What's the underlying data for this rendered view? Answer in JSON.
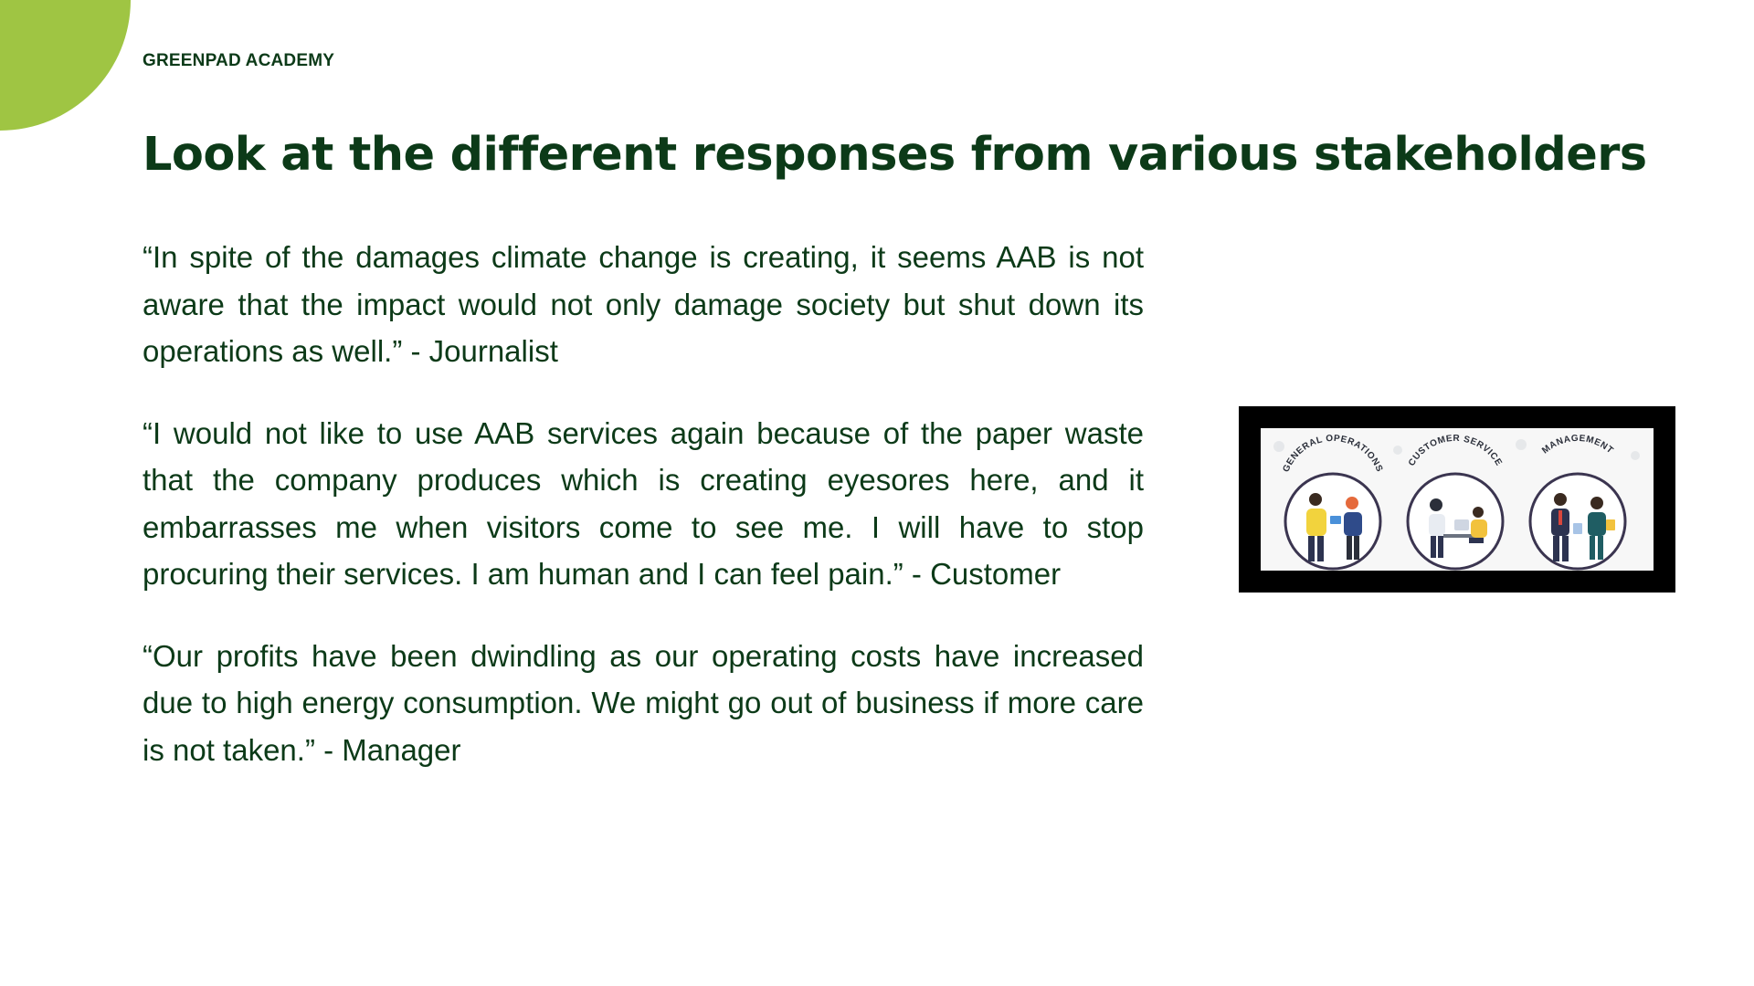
{
  "brand": "GREENPAD ACADEMY",
  "title": "Look at the different responses from various stakeholders",
  "quotes": [
    {
      "text": "“In spite of the damages climate change is creating, it seems AAB is not aware that the impact would not only damage society but shut down its operations as well.” - Journalist"
    },
    {
      "text": "“I would not like to use AAB services again because of the paper waste that the company produces which is creating eyesores here, and it embarrasses me when visitors come to see me. I will have to stop procuring their services. I am human and I can feel pain.” - Customer"
    },
    {
      "text": "“Our profits have been dwindling as our operating costs have increased due to high energy consumption. We might go out of business if more care is not taken.” - Manager"
    }
  ],
  "figure": {
    "labels": [
      "GENERAL OPERATIONS",
      "CUSTOMER SERVICE",
      "MANAGEMENT"
    ]
  },
  "colors": {
    "accent": "#9fc543",
    "text": "#0c3a18"
  }
}
